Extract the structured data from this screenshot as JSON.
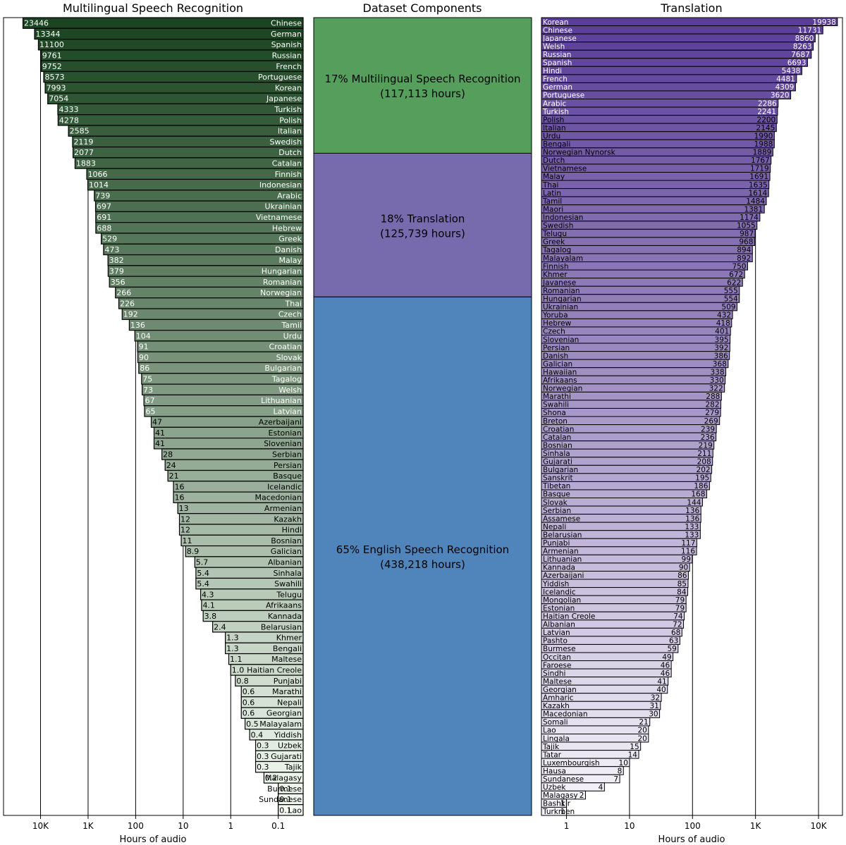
{
  "chart_data": [
    {
      "type": "bar",
      "orientation": "horizontal",
      "title": "Multilingual Speech Recognition",
      "xlabel": "Hours of audio",
      "xscale": "log",
      "x_direction": "reversed",
      "xlim": [
        0.03,
        60000
      ],
      "xticks": [
        10000,
        1000,
        100,
        10,
        1,
        0.1
      ],
      "xtick_labels": [
        "10K",
        "1K",
        "100",
        "10",
        "1",
        "0.1"
      ],
      "grid": "vertical",
      "color_scheme": {
        "from": "#1a4520",
        "to": "#f4fbf2"
      },
      "categories": [
        "Chinese",
        "German",
        "Spanish",
        "Russian",
        "French",
        "Portuguese",
        "Korean",
        "Japanese",
        "Turkish",
        "Polish",
        "Italian",
        "Swedish",
        "Dutch",
        "Catalan",
        "Finnish",
        "Indonesian",
        "Arabic",
        "Ukrainian",
        "Vietnamese",
        "Hebrew",
        "Greek",
        "Danish",
        "Malay",
        "Hungarian",
        "Romanian",
        "Norwegian",
        "Thai",
        "Czech",
        "Tamil",
        "Urdu",
        "Croatian",
        "Slovak",
        "Bulgarian",
        "Tagalog",
        "Welsh",
        "Lithuanian",
        "Latvian",
        "Azerbaijani",
        "Estonian",
        "Slovenian",
        "Serbian",
        "Persian",
        "Basque",
        "Icelandic",
        "Macedonian",
        "Armenian",
        "Kazakh",
        "Hindi",
        "Bosnian",
        "Galician",
        "Albanian",
        "Sinhala",
        "Swahili",
        "Telugu",
        "Afrikaans",
        "Kannada",
        "Belarusian",
        "Khmer",
        "Bengali",
        "Maltese",
        "Haitian Creole",
        "Punjabi",
        "Marathi",
        "Nepali",
        "Georgian",
        "Malayalam",
        "Yiddish",
        "Uzbek",
        "Gujarati",
        "Tajik",
        "Malagasy",
        "Burmese",
        "Sundanese",
        "Lao"
      ],
      "values": [
        23446,
        13344,
        11100,
        9761,
        9752,
        8573,
        7993,
        7054,
        4333,
        4278,
        2585,
        2119,
        2077,
        1883,
        1066,
        1014,
        739,
        697,
        691,
        688,
        529,
        473,
        382,
        379,
        356,
        266,
        226,
        192,
        136,
        104,
        91,
        90,
        86,
        75,
        73,
        67,
        65,
        47,
        41,
        41,
        28,
        24,
        21,
        16,
        16,
        13,
        12,
        12,
        11,
        8.9,
        5.7,
        5.4,
        5.4,
        4.3,
        4.1,
        3.8,
        2.4,
        1.3,
        1.3,
        1.1,
        1.0,
        0.8,
        0.6,
        0.6,
        0.6,
        0.5,
        0.4,
        0.3,
        0.3,
        0.3,
        0.2,
        0.1,
        0.1,
        0.1
      ],
      "value_labels": [
        "23446",
        "13344",
        "11100",
        "9761",
        "9752",
        "8573",
        "7993",
        "7054",
        "4333",
        "4278",
        "2585",
        "2119",
        "2077",
        "1883",
        "1066",
        "1014",
        "739",
        "697",
        "691",
        "688",
        "529",
        "473",
        "382",
        "379",
        "356",
        "266",
        "226",
        "192",
        "136",
        "104",
        "91",
        "90",
        "86",
        "75",
        "73",
        "67",
        "65",
        "47",
        "41",
        "41",
        "28",
        "24",
        "21",
        "16",
        "16",
        "13",
        "12",
        "12",
        "11",
        "8.9",
        "5.7",
        "5.4",
        "5.4",
        "4.3",
        "4.1",
        "3.8",
        "2.4",
        "1.3",
        "1.3",
        "1.1",
        "1.0",
        "0.8",
        "0.6",
        "0.6",
        "0.6",
        "0.5",
        "0.4",
        "0.3",
        "0.3",
        "0.3",
        "0.2",
        "0.1",
        "0.1",
        "0.1"
      ]
    },
    {
      "type": "bar",
      "stacked": true,
      "title": "Dataset Components",
      "series": [
        {
          "name": "English Speech Recognition",
          "percent": 65,
          "hours": 438218,
          "label_line1": "65% English Speech Recognition",
          "label_line2": "(438,218 hours)",
          "color": "#4f85bb"
        },
        {
          "name": "Translation",
          "percent": 18,
          "hours": 125739,
          "label_line1": "18% Translation",
          "label_line2": "(125,739 hours)",
          "color": "#776aad"
        },
        {
          "name": "Multilingual Speech Recognition",
          "percent": 17,
          "hours": 117113,
          "label_line1": "17% Multilingual Speech Recognition",
          "label_line2": "(117,113 hours)",
          "color": "#559e5b"
        }
      ]
    },
    {
      "type": "bar",
      "orientation": "horizontal",
      "title": "Translation",
      "xlabel": "Hours of audio",
      "xscale": "log",
      "xlim": [
        0.4,
        24000
      ],
      "xticks": [
        1,
        10,
        100,
        1000,
        10000
      ],
      "xtick_labels": [
        "1",
        "10",
        "100",
        "1K",
        "10K"
      ],
      "grid": "vertical",
      "color_scheme": {
        "from": "#5a3d98",
        "to": "#f6f5fa"
      },
      "categories": [
        "Korean",
        "Chinese",
        "Japanese",
        "Welsh",
        "Russian",
        "Spanish",
        "Hindi",
        "French",
        "German",
        "Portuguese",
        "Arabic",
        "Turkish",
        "Polish",
        "Italian",
        "Urdu",
        "Bengali",
        "Norwegian Nynorsk",
        "Dutch",
        "Vietnamese",
        "Malay",
        "Thai",
        "Latin",
        "Tamil",
        "Maori",
        "Indonesian",
        "Swedish",
        "Telugu",
        "Greek",
        "Tagalog",
        "Malayalam",
        "Finnish",
        "Khmer",
        "Javanese",
        "Romanian",
        "Hungarian",
        "Ukrainian",
        "Yoruba",
        "Hebrew",
        "Czech",
        "Slovenian",
        "Persian",
        "Danish",
        "Galician",
        "Hawaiian",
        "Afrikaans",
        "Norwegian",
        "Marathi",
        "Swahili",
        "Shona",
        "Breton",
        "Croatian",
        "Catalan",
        "Bosnian",
        "Sinhala",
        "Gujarati",
        "Bulgarian",
        "Sanskrit",
        "Tibetan",
        "Basque",
        "Slovak",
        "Serbian",
        "Assamese",
        "Nepali",
        "Belarusian",
        "Punjabi",
        "Armenian",
        "Lithuanian",
        "Kannada",
        "Azerbaijani",
        "Yiddish",
        "Icelandic",
        "Mongolian",
        "Estonian",
        "Haitian Creole",
        "Albanian",
        "Latvian",
        "Pashto",
        "Burmese",
        "Occitan",
        "Faroese",
        "Sindhi",
        "Maltese",
        "Georgian",
        "Amharic",
        "Kazakh",
        "Macedonian",
        "Somali",
        "Lao",
        "Lingala",
        "Tajik",
        "Tatar",
        "Luxembourgish",
        "Hausa",
        "Sundanese",
        "Uzbek",
        "Malagasy",
        "Bashkir",
        "Turkmen"
      ],
      "values": [
        19938,
        11731,
        8860,
        8263,
        7687,
        6693,
        5438,
        4481,
        4309,
        3620,
        2286,
        2241,
        2200,
        2145,
        1990,
        1988,
        1889,
        1767,
        1719,
        1691,
        1635,
        1614,
        1484,
        1381,
        1174,
        1055,
        987,
        968,
        894,
        892,
        750,
        672,
        622,
        555,
        554,
        509,
        432,
        418,
        401,
        395,
        392,
        386,
        368,
        338,
        330,
        322,
        288,
        282,
        279,
        269,
        239,
        236,
        219,
        211,
        208,
        202,
        195,
        186,
        168,
        144,
        136,
        136,
        133,
        133,
        117,
        116,
        99,
        90,
        86,
        85,
        84,
        79,
        79,
        74,
        72,
        68,
        63,
        59,
        49,
        46,
        46,
        41,
        40,
        32,
        31,
        30,
        21,
        20,
        20,
        15,
        14,
        10,
        8,
        7,
        4,
        2,
        1,
        1
      ]
    }
  ]
}
